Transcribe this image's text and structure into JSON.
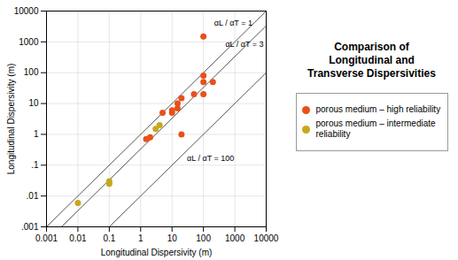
{
  "chart_data": {
    "type": "scatter",
    "title": "Comparison of\nLongitudinal and\nTransverse Dispersivities",
    "x_label": "Longitudinal Dispersivity (m)",
    "y_label": "Longitudinal Dispersivity (m)",
    "log": true,
    "grid": true,
    "xlim": [
      0.001,
      10000
    ],
    "ylim": [
      0.001,
      10000
    ],
    "xticks": [
      0.001,
      0.01,
      0.1,
      1,
      10,
      100,
      1000,
      10000
    ],
    "yticks": [
      {
        "value": 0.001,
        "label": ".001"
      },
      {
        "value": 0.01,
        "label": ".01"
      },
      {
        "value": 0.1,
        "label": ".1"
      },
      1,
      10,
      100,
      1000,
      10000
    ],
    "series": [
      {
        "name": "porous medium – high reliability",
        "color": "#e8501a",
        "x": [
          100,
          100,
          100,
          200,
          100,
          50,
          20,
          15,
          15,
          10,
          10,
          5,
          20,
          2,
          1.5
        ],
        "values": [
          1500,
          80,
          50,
          50,
          20,
          20,
          15,
          10,
          7,
          5,
          6,
          5,
          1,
          0.8,
          0.7
        ]
      },
      {
        "name": "porous medium – intermediate reliability",
        "color": "#c8a81a",
        "x": [
          0.01,
          0.1,
          0.1,
          3,
          4
        ],
        "values": [
          0.006,
          0.03,
          0.025,
          1.5,
          2
        ]
      }
    ],
    "ratio_lines": [
      {
        "x": [
          0.001,
          10000
        ],
        "values": [
          0.001,
          10000
        ]
      },
      {
        "x": [
          0.001,
          10000
        ],
        "values": [
          0.0003333333333333334,
          3333.3333333333335
        ]
      },
      {
        "x": [
          0.001,
          10000
        ],
        "values": [
          1e-05,
          100
        ]
      }
    ],
    "annotations": [
      {
        "text": "αL / αT = 1",
        "x": 220,
        "y": 3000
      },
      {
        "text": "αL / αT = 3",
        "x": 500,
        "y": 600
      },
      {
        "text": "αL / αT = 100",
        "x": 30,
        "y": 0.12
      }
    ]
  }
}
